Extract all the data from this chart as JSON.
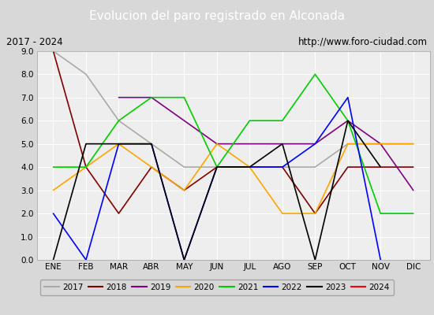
{
  "title": "Evolucion del paro registrado en Alconada",
  "subtitle_left": "2017 - 2024",
  "subtitle_right": "http://www.foro-ciudad.com",
  "months": [
    "ENE",
    "FEB",
    "MAR",
    "ABR",
    "MAY",
    "JUN",
    "JUL",
    "AGO",
    "SEP",
    "OCT",
    "NOV",
    "DIC"
  ],
  "ylim": [
    0.0,
    9.0
  ],
  "yticks": [
    0.0,
    1.0,
    2.0,
    3.0,
    4.0,
    5.0,
    6.0,
    7.0,
    8.0,
    9.0
  ],
  "series": {
    "2017": {
      "color": "#aaaaaa",
      "values": [
        9.0,
        8.0,
        6.0,
        5.0,
        4.0,
        4.0,
        4.0,
        4.0,
        4.0,
        5.0,
        5.0,
        5.0
      ]
    },
    "2018": {
      "color": "#800000",
      "values": [
        9.0,
        4.0,
        2.0,
        4.0,
        3.0,
        4.0,
        4.0,
        4.0,
        2.0,
        4.0,
        4.0,
        4.0
      ]
    },
    "2019": {
      "color": "#800080",
      "values": [
        null,
        null,
        7.0,
        7.0,
        6.0,
        5.0,
        5.0,
        5.0,
        5.0,
        6.0,
        5.0,
        3.0
      ]
    },
    "2020": {
      "color": "#ffa500",
      "values": [
        3.0,
        4.0,
        5.0,
        4.0,
        3.0,
        5.0,
        4.0,
        2.0,
        2.0,
        5.0,
        5.0,
        5.0
      ]
    },
    "2021": {
      "color": "#00cc00",
      "values": [
        4.0,
        4.0,
        6.0,
        7.0,
        7.0,
        4.0,
        6.0,
        6.0,
        8.0,
        6.0,
        2.0,
        2.0
      ]
    },
    "2022": {
      "color": "#0000ff",
      "values": [
        2.0,
        0.0,
        5.0,
        5.0,
        0.0,
        4.0,
        4.0,
        4.0,
        5.0,
        7.0,
        0.0,
        null
      ]
    },
    "2023": {
      "color": "#000000",
      "values": [
        0.0,
        5.0,
        5.0,
        5.0,
        0.0,
        4.0,
        4.0,
        5.0,
        0.0,
        6.0,
        4.0,
        null
      ]
    },
    "2024": {
      "color": "#ff0000",
      "values": [
        9.0,
        null,
        null,
        null,
        null,
        null,
        null,
        null,
        null,
        null,
        null,
        null
      ]
    }
  },
  "title_bg_color": "#4472c4",
  "title_text_color": "#ffffff",
  "subtitle_bg_color": "#d8d8d8",
  "plot_bg_color": "#eeeeee",
  "grid_color": "#ffffff",
  "legend_bg_color": "#d8d8d8",
  "fig_bg_color": "#d8d8d8"
}
